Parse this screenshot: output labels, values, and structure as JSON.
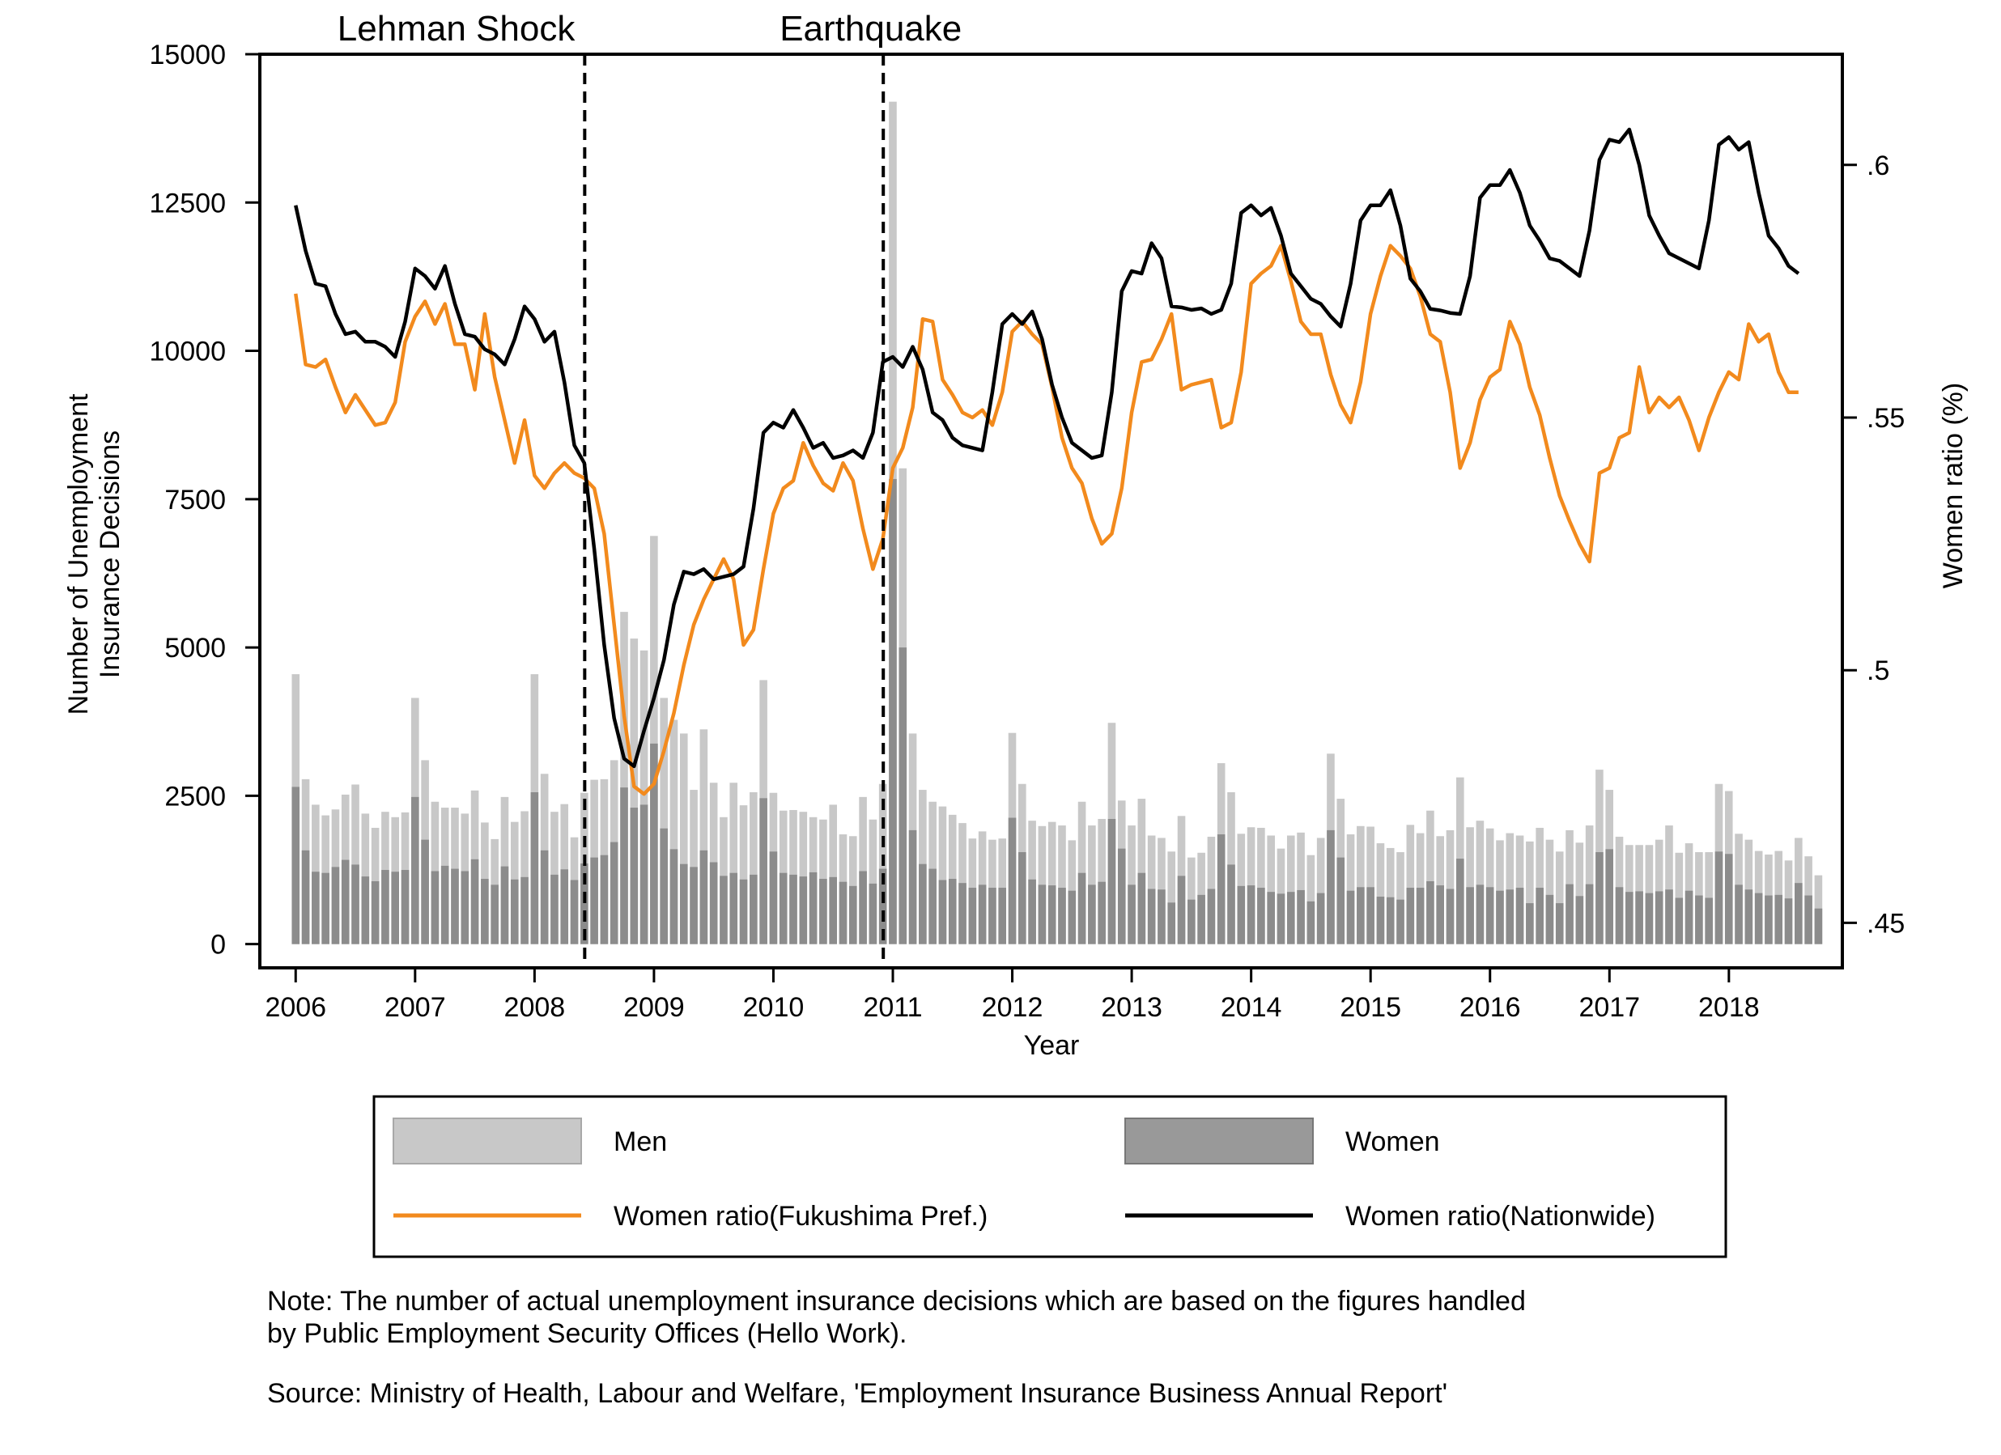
{
  "chart_data": {
    "type": "bar+line",
    "xlabel": "Year",
    "ylabel_left": "Number of Unemployment Insurance Decisions",
    "ylabel_right": "Women ratio (%)",
    "xlim": [
      2005.7,
      2018.95
    ],
    "ylim_left": [
      -400,
      15000
    ],
    "ylim_right": [
      0.4411,
      0.6219
    ],
    "x_ticks": [
      2006,
      2007,
      2008,
      2009,
      2010,
      2011,
      2012,
      2013,
      2014,
      2015,
      2016,
      2017,
      2018
    ],
    "y_left_ticks": [
      0,
      2500,
      5000,
      7500,
      10000,
      12500,
      15000
    ],
    "y_right_ticks": [
      0.45,
      0.5,
      0.55,
      0.6
    ],
    "y_right_tick_labels": [
      ".45",
      ".5",
      ".55",
      ".6"
    ],
    "x_start": 2006.0,
    "x_step": 0.08333,
    "events": [
      {
        "label": "Lehman Shock",
        "x": 2008.42
      },
      {
        "label": "Earthquake",
        "x": 2010.92
      }
    ],
    "series": [
      {
        "name": "Men",
        "kind": "bar",
        "color": "#c8c8c8",
        "values": [
          4550,
          2780,
          2350,
          2170,
          2270,
          2520,
          2690,
          2200,
          1960,
          2230,
          2140,
          2220,
          4150,
          3100,
          2400,
          2300,
          2300,
          2200,
          2590,
          2050,
          1770,
          2480,
          2060,
          2240,
          4550,
          2870,
          2230,
          2360,
          1800,
          2550,
          2770,
          2780,
          3100,
          5600,
          5150,
          4950,
          6880,
          4150,
          3780,
          3550,
          2600,
          3620,
          2720,
          2140,
          2720,
          2340,
          2560,
          4450,
          2550,
          2250,
          2260,
          2230,
          2140,
          2100,
          2350,
          1850,
          1820,
          2480,
          2100,
          2700,
          14200,
          8020,
          3550,
          2600,
          2400,
          2320,
          2180,
          2040,
          1780,
          1900,
          1760,
          1780,
          3560,
          2700,
          2080,
          1990,
          2060,
          2000,
          1750,
          2400,
          2000,
          2110,
          3730,
          2420,
          2000,
          2450,
          1830,
          1790,
          1560,
          2160,
          1460,
          1540,
          1810,
          3050,
          2560,
          1860,
          1970,
          1960,
          1830,
          1610,
          1830,
          1880,
          1500,
          1790,
          3210,
          2450,
          1850,
          1990,
          1980,
          1700,
          1620,
          1550,
          2010,
          1870,
          2250,
          1820,
          1920,
          2810,
          1970,
          2080,
          1950,
          1750,
          1870,
          1830,
          1730,
          1960,
          1760,
          1560,
          1920,
          1710,
          2000,
          2940,
          2600,
          1810,
          1670,
          1670,
          1670,
          1760,
          2000,
          1540,
          1700,
          1550,
          1550,
          2700,
          2580,
          1860,
          1760,
          1570,
          1510,
          1570,
          1410,
          1790,
          1480,
          1160
        ]
      },
      {
        "name": "Women",
        "kind": "bar",
        "color": "#8c8c8c",
        "values": [
          2650,
          1580,
          1220,
          1200,
          1300,
          1420,
          1340,
          1140,
          1060,
          1250,
          1220,
          1250,
          2480,
          1760,
          1230,
          1320,
          1270,
          1230,
          1430,
          1100,
          1000,
          1310,
          1090,
          1130,
          2560,
          1580,
          1170,
          1260,
          1080,
          1360,
          1460,
          1500,
          1720,
          2640,
          2300,
          2350,
          3380,
          1950,
          1600,
          1350,
          1300,
          1580,
          1380,
          1150,
          1200,
          1090,
          1170,
          2460,
          1560,
          1200,
          1170,
          1140,
          1210,
          1100,
          1130,
          1050,
          980,
          1230,
          1020,
          1270,
          7840,
          5000,
          1920,
          1350,
          1270,
          1080,
          1100,
          1030,
          950,
          1000,
          950,
          950,
          2130,
          1550,
          1090,
          1000,
          990,
          950,
          900,
          1200,
          1000,
          1050,
          2110,
          1610,
          1000,
          1200,
          930,
          920,
          700,
          1150,
          750,
          830,
          930,
          1850,
          1340,
          980,
          990,
          950,
          880,
          850,
          880,
          910,
          720,
          860,
          1920,
          1460,
          900,
          960,
          960,
          800,
          790,
          750,
          950,
          950,
          1060,
          990,
          930,
          1440,
          960,
          1000,
          960,
          900,
          920,
          950,
          690,
          950,
          830,
          690,
          1010,
          810,
          1010,
          1550,
          1600,
          960,
          880,
          890,
          860,
          890,
          920,
          780,
          900,
          820,
          780,
          1560,
          1520,
          1000,
          920,
          860,
          820,
          830,
          770,
          1030,
          820,
          600
        ]
      },
      {
        "name": "Women ratio(Fukushima Pref.)",
        "kind": "line",
        "axis": "right",
        "color": "#f28a1d",
        "values": [
          0.5745,
          0.5605,
          0.56,
          0.5615,
          0.556,
          0.551,
          0.5545,
          0.5515,
          0.5485,
          0.549,
          0.553,
          0.565,
          0.57,
          0.573,
          0.5685,
          0.5725,
          0.5645,
          0.5645,
          0.5555,
          0.5705,
          0.558,
          0.5495,
          0.541,
          0.5495,
          0.5385,
          0.536,
          0.539,
          0.541,
          0.539,
          0.538,
          0.536,
          0.527,
          0.509,
          0.491,
          0.477,
          0.4755,
          0.4775,
          0.484,
          0.4915,
          0.501,
          0.509,
          0.514,
          0.518,
          0.522,
          0.518,
          0.505,
          0.508,
          0.52,
          0.531,
          0.536,
          0.5375,
          0.545,
          0.5405,
          0.537,
          0.5355,
          0.541,
          0.5375,
          0.528,
          0.52,
          0.526,
          0.54,
          0.544,
          0.552,
          0.5695,
          0.569,
          0.5575,
          0.5545,
          0.551,
          0.55,
          0.5515,
          0.5485,
          0.555,
          0.567,
          0.569,
          0.5665,
          0.5645,
          0.556,
          0.546,
          0.54,
          0.537,
          0.53,
          0.525,
          0.527,
          0.536,
          0.551,
          0.561,
          0.5615,
          0.5655,
          0.5705,
          0.5555,
          0.5565,
          0.557,
          0.5575,
          0.548,
          0.549,
          0.559,
          0.5765,
          0.5785,
          0.58,
          0.584,
          0.577,
          0.569,
          0.5665,
          0.5665,
          0.5585,
          0.5525,
          0.549,
          0.557,
          0.5705,
          0.578,
          0.584,
          0.582,
          0.5795,
          0.574,
          0.5665,
          0.565,
          0.555,
          0.54,
          0.545,
          0.5535,
          0.558,
          0.5595,
          0.569,
          0.5645,
          0.556,
          0.5505,
          0.542,
          0.5345,
          0.5295,
          0.525,
          0.5215,
          0.539,
          0.54,
          0.546,
          0.547,
          0.56,
          0.551,
          0.554,
          0.552,
          0.554,
          0.5495,
          0.5435,
          0.55,
          0.555,
          0.559,
          0.5575,
          0.5685,
          0.565,
          0.5665,
          0.559,
          0.555,
          0.555
        ]
      },
      {
        "name": "Women ratio(Nationwide)",
        "kind": "line",
        "axis": "right",
        "color": "#000000",
        "values": [
          0.592,
          0.583,
          0.5765,
          0.576,
          0.5705,
          0.5665,
          0.567,
          0.565,
          0.565,
          0.564,
          0.562,
          0.569,
          0.5795,
          0.578,
          0.5755,
          0.58,
          0.5725,
          0.5665,
          0.566,
          0.5635,
          0.5625,
          0.5605,
          0.5655,
          0.572,
          0.5695,
          0.565,
          0.567,
          0.557,
          0.5445,
          0.541,
          0.524,
          0.505,
          0.4905,
          0.4825,
          0.481,
          0.488,
          0.4945,
          0.502,
          0.513,
          0.5195,
          0.519,
          0.52,
          0.518,
          0.5185,
          0.519,
          0.5205,
          0.532,
          0.547,
          0.549,
          0.548,
          0.5515,
          0.548,
          0.544,
          0.545,
          0.542,
          0.5425,
          0.5435,
          0.542,
          0.547,
          0.561,
          0.562,
          0.56,
          0.564,
          0.5595,
          0.551,
          0.5495,
          0.546,
          0.5445,
          0.544,
          0.5435,
          0.555,
          0.5685,
          0.5705,
          0.5685,
          0.571,
          0.5655,
          0.5565,
          0.55,
          0.545,
          0.5435,
          0.542,
          0.5425,
          0.555,
          0.575,
          0.579,
          0.5785,
          0.5845,
          0.5815,
          0.572,
          0.5718,
          0.5713,
          0.5716,
          0.5705,
          0.5713,
          0.5765,
          0.5905,
          0.592,
          0.59,
          0.5915,
          0.586,
          0.5785,
          0.576,
          0.5735,
          0.5725,
          0.57,
          0.568,
          0.5765,
          0.589,
          0.592,
          0.592,
          0.595,
          0.588,
          0.5775,
          0.575,
          0.5715,
          0.5712,
          0.5707,
          0.5705,
          0.578,
          0.5935,
          0.596,
          0.596,
          0.599,
          0.5945,
          0.588,
          0.585,
          0.5815,
          0.581,
          0.5795,
          0.578,
          0.587,
          0.601,
          0.605,
          0.6045,
          0.607,
          0.6,
          0.59,
          0.586,
          0.5825,
          0.5815,
          0.5805,
          0.5795,
          0.589,
          0.604,
          0.6055,
          0.603,
          0.6045,
          0.5945,
          0.586,
          0.5835,
          0.58,
          0.5785
        ]
      }
    ]
  },
  "legend": {
    "items": [
      "Men",
      "Women",
      "Women ratio(Fukushima Pref.)",
      "Women ratio(Nationwide)"
    ]
  },
  "notes": {
    "note_line1": "Note: The number of actual unemployment insurance decisions which are based on the figures handled",
    "note_line2": "by Public Employment Security Offices (Hello Work).",
    "source": "Source: Ministry of Health, Labour and Welfare, 'Employment Insurance Business Annual Report'"
  }
}
